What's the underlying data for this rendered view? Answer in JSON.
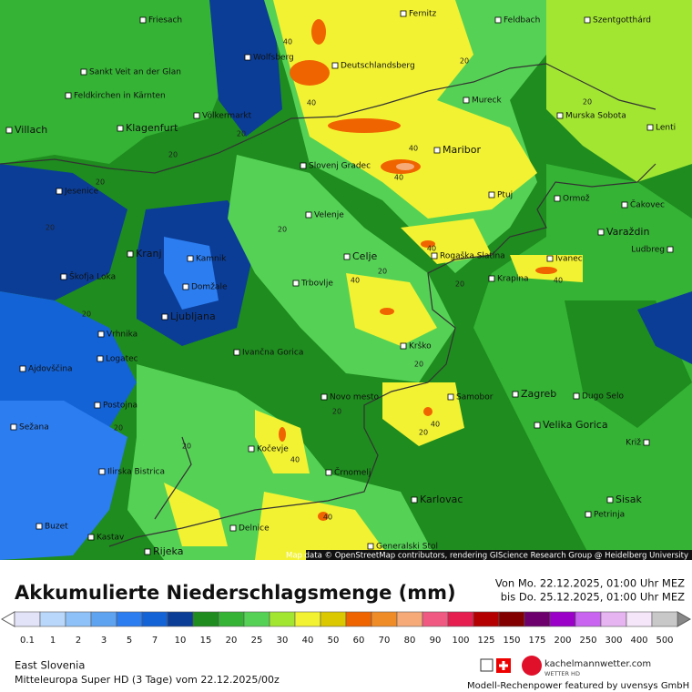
{
  "map": {
    "cities": [
      "Friesach",
      "Fernitz",
      "Feldbach",
      "Szentgotthárd",
      "Wolfsberg",
      "Sankt Veit an der Glan",
      "Deutschlandsberg",
      "Feldkirchen in Kärnten",
      "Mureck",
      "Völkermarkt",
      "Murska Sobota",
      "Lenti",
      "Villach",
      "Klagenfurt",
      "Maribor",
      "Slovenj Gradec",
      "Jesenice",
      "Ptuj",
      "Ormož",
      "Čakovec",
      "Velenje",
      "Varaždin",
      "Kranj",
      "Celje",
      "Rogaška Slatina",
      "Ivanec",
      "Ludbreg",
      "Kamnik",
      "Škofja Loka",
      "Krapina",
      "Trbovlje",
      "Domžale",
      "Ljubljana",
      "Vrhnika",
      "Ivančna Gorica",
      "Krško",
      "Ajdovščina",
      "Logatec",
      "Novo mesto",
      "Samobor",
      "Zagreb",
      "Dugo Selo",
      "Postojna",
      "Sežana",
      "Velika Gorica",
      "Kočevje",
      "Križ",
      "Ilirska Bistrica",
      "Črnomelj",
      "Karlovac",
      "Sisak",
      "Petrinja",
      "Buzet",
      "Delnice",
      "Kastav",
      "Generalski Stol",
      "Rijeka"
    ],
    "contour_labels": [
      "40",
      "20",
      "20",
      "20",
      "20",
      "20",
      "20",
      "20",
      "20",
      "20",
      "20",
      "20",
      "20",
      "20",
      "20",
      "20",
      "40",
      "40",
      "40",
      "40",
      "40",
      "40",
      "40",
      "40",
      "40"
    ],
    "attribution": "Map data © OpenStreetMap contributors, rendering GIScience Research Group @ Heidelberg University"
  },
  "legend": {
    "title": "Akkumulierte Niederschlagsmenge (mm)",
    "valid_from": "Von Mo. 22.12.2025, 01:00 Uhr MEZ",
    "valid_to": "bis Do. 25.12.2025, 01:00 Uhr MEZ",
    "values": [
      0.1,
      1,
      2,
      3,
      5,
      7,
      10,
      15,
      20,
      25,
      30,
      40,
      50,
      60,
      70,
      80,
      90,
      100,
      125,
      150,
      175,
      200,
      250,
      300,
      400,
      500
    ],
    "colors": [
      "#e2e2f8",
      "#b9d6fb",
      "#8ec1f8",
      "#5ea3f0",
      "#2c7df0",
      "#1463d6",
      "#0b3d97",
      "#1e8c1e",
      "#35b335",
      "#55d255",
      "#a2e632",
      "#f2f232",
      "#dcc800",
      "#f06400",
      "#f08c28",
      "#f5aa78",
      "#f05a82",
      "#e61e50",
      "#b40000",
      "#820000",
      "#6e006e",
      "#9a00c8",
      "#c864f0",
      "#e6b4f0",
      "#f5e6fa",
      "#c8c8c8"
    ]
  },
  "footer": {
    "region": "East Slovenia",
    "model": "Mitteleuropa Super HD (3 Tage) vom  22.12.2025/00z",
    "brand": "kachelmannwetter.com",
    "brand_sub": "WETTER HD",
    "credit": "Modell-Rechenpower featured by uvensys GmbH"
  }
}
